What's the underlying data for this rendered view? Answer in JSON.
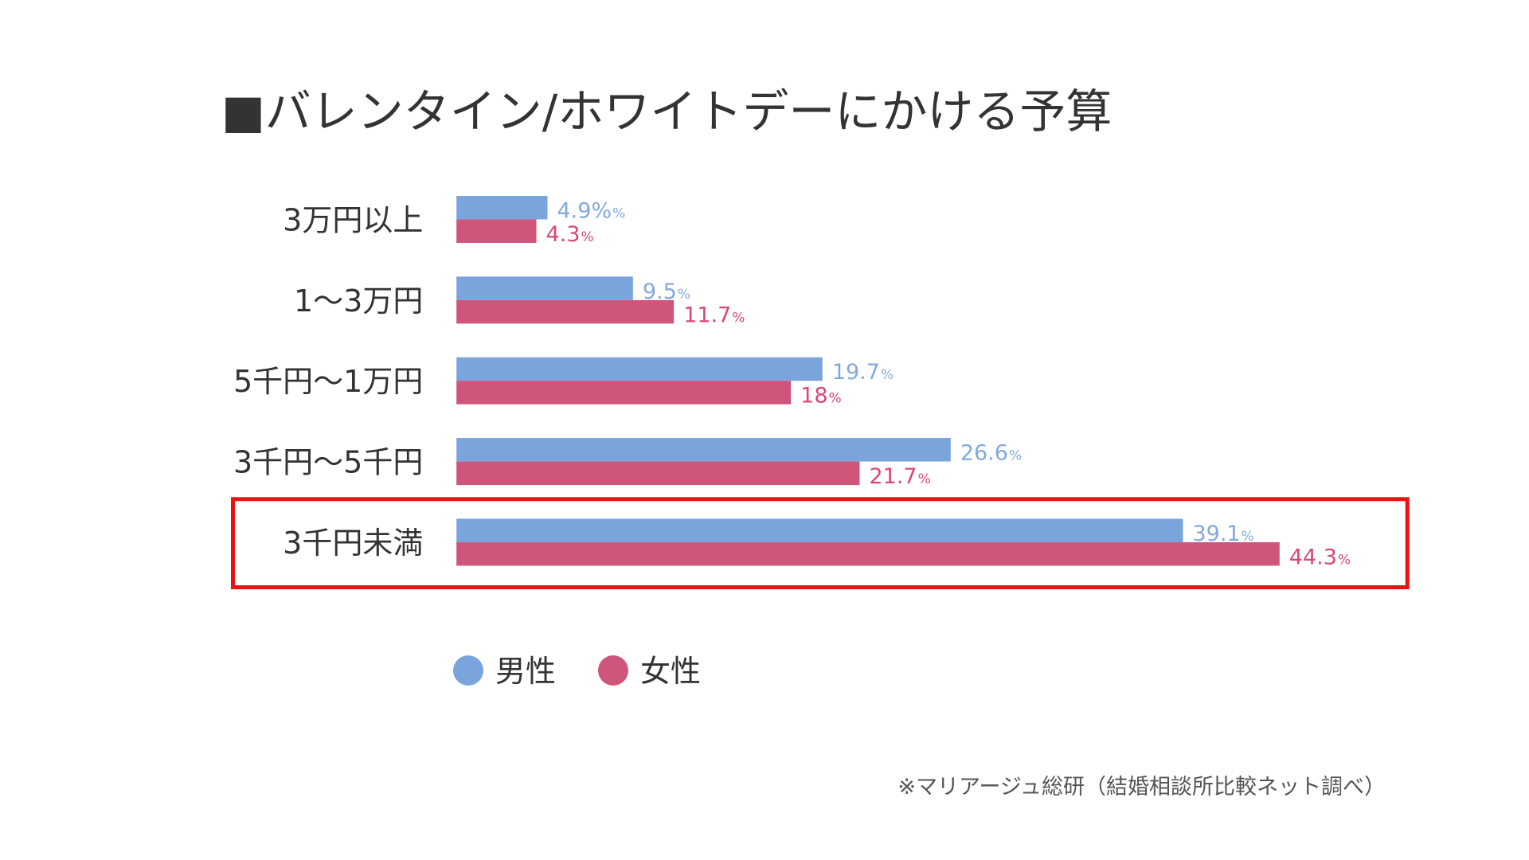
{
  "colors": {
    "male": "#7aa5dc",
    "female": "#d0557a",
    "male_label": "#82a9de",
    "female_label": "#d9467a",
    "highlight": "#ee1111",
    "title": "#333333",
    "category": "#333333",
    "note": "#555555",
    "background": "#ffffff"
  },
  "chart_data": {
    "type": "bar",
    "orientation": "horizontal",
    "title": "■バレンタイン/ホワイトデーにかける予算",
    "categories": [
      "3万円以上",
      "1〜3万円",
      "5千円〜1万円",
      "3千円〜5千円",
      "3千円未満"
    ],
    "series": [
      {
        "name": "男性",
        "values": [
          4.9,
          9.5,
          19.7,
          26.6,
          39.1
        ],
        "labels": [
          "4.9%",
          "9.5",
          "19.7",
          "26.6",
          "39.1"
        ],
        "unit": "%"
      },
      {
        "name": "女性",
        "values": [
          4.3,
          11.7,
          18,
          21.7,
          44.3
        ],
        "labels": [
          "4.3",
          "11.7",
          "18",
          "21.7",
          "44.3"
        ],
        "unit": "%"
      }
    ],
    "xlim": [
      0,
      50
    ],
    "grid": false,
    "legend_position": "bottom-left",
    "highlighted_category": "3千円未満",
    "source_note": "※マリアージュ総研（結婚相談所比較ネット調べ）"
  }
}
